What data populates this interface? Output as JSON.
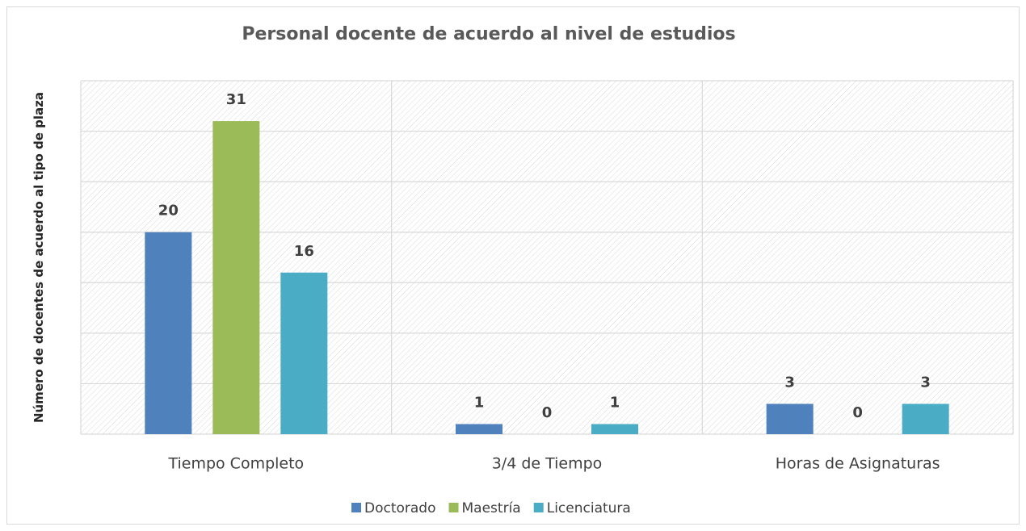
{
  "chart_data": {
    "type": "bar",
    "title": "Personal docente de acuerdo al nivel  de estudios",
    "y_label": "Número de docentes de acuerdo al tipo de plaza",
    "categories": [
      "Tiempo Completo",
      "3/4 de Tiempo",
      "Horas de Asignaturas"
    ],
    "series": [
      {
        "name": "Doctorado",
        "color": "#4f81bd",
        "values": [
          20,
          1,
          3
        ]
      },
      {
        "name": "Maestría",
        "color": "#9bbb59",
        "values": [
          31,
          0,
          0
        ]
      },
      {
        "name": "Licenciatura",
        "color": "#4bacc6",
        "values": [
          16,
          1,
          3
        ]
      }
    ],
    "ylim": [
      0,
      35
    ],
    "yticks": [
      0,
      5,
      10,
      15,
      20,
      25,
      30,
      35
    ],
    "grid": true,
    "legend": "bottom"
  }
}
